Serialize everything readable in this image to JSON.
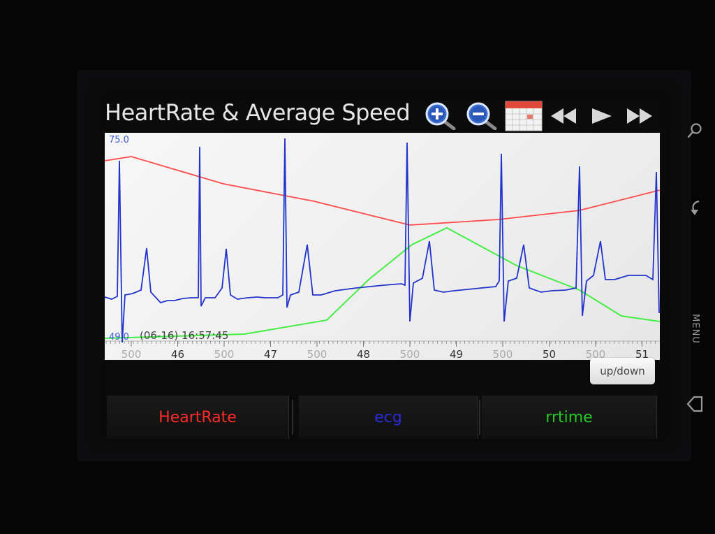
{
  "app": {
    "title": "HeartRate & Average Speed"
  },
  "toolbar": {
    "icons": [
      "zoom-in-icon",
      "zoom-out-icon",
      "calendar-icon",
      "rewind-icon",
      "play-icon",
      "fast-forward-icon"
    ]
  },
  "chart_data": {
    "type": "line",
    "y_top_label": "75.0",
    "y_bottom_label": "49.0",
    "ylim": [
      49.0,
      75.0
    ],
    "timestamp_label": "(06-16) 16:57:45",
    "x_tick_labels": [
      "500",
      "46",
      "500",
      "47",
      "500",
      "48",
      "500",
      "49",
      "500",
      "50",
      "500",
      "51"
    ],
    "series": [
      {
        "name": "HeartRate",
        "color": "#ff4444"
      },
      {
        "name": "ecg",
        "color": "#2233cc"
      },
      {
        "name": "rrtime",
        "color": "#33dd33"
      }
    ]
  },
  "controls": {
    "up_down_label": "up/down"
  },
  "series_buttons": [
    {
      "label": "HeartRate",
      "color": "#ff2a2a"
    },
    {
      "label": "ecg",
      "color": "#2b2bd8"
    },
    {
      "label": "rrtime",
      "color": "#22cc22"
    }
  ],
  "system_keys": {
    "menu_label": "MENU"
  }
}
